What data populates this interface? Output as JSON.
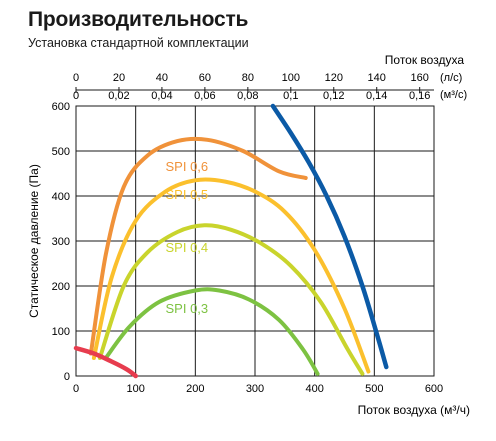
{
  "chart_data": {
    "type": "line",
    "title": "Производительность",
    "subtitle": "Установка стандартной комплектации",
    "xlabel": "Поток воздуха (м³/ч)",
    "ylabel": "Статическое давление (Па)",
    "top_axis_label": "Поток воздуха",
    "top_axis_unit_ls": "(л/с)",
    "top_axis_unit_m3s": "(м³/с)",
    "xlim": [
      0,
      600
    ],
    "ylim": [
      0,
      600
    ],
    "x_ticks": [
      "0",
      "100",
      "200",
      "300",
      "400",
      "500",
      "600"
    ],
    "y_ticks": [
      "0",
      "100",
      "200",
      "300",
      "400",
      "500",
      "600"
    ],
    "top_ticks_ls": [
      "0",
      "20",
      "40",
      "60",
      "80",
      "100",
      "120",
      "140",
      "160"
    ],
    "top_ticks_m3s": [
      "0",
      "0,02",
      "0,04",
      "0,06",
      "0,08",
      "0,1",
      "0,12",
      "0,14",
      "0,16"
    ],
    "grid": true,
    "series": [
      {
        "name": "SPI 0,6",
        "color": "#f0923a",
        "x": [
          25,
          50,
          80,
          120,
          170,
          220,
          280,
          340,
          385
        ],
        "y": [
          50,
          270,
          420,
          490,
          522,
          525,
          500,
          455,
          440
        ]
      },
      {
        "name": "SPI 0,5",
        "color": "#fbc02d",
        "x": [
          30,
          60,
          100,
          150,
          200,
          250,
          300,
          350,
          400,
          450,
          490
        ],
        "y": [
          40,
          220,
          345,
          410,
          435,
          432,
          410,
          365,
          280,
          150,
          10
        ]
      },
      {
        "name": "SPI 0,4",
        "color": "#c9d42c",
        "x": [
          40,
          80,
          120,
          170,
          215,
          260,
          310,
          360,
          410,
          455,
          480
        ],
        "y": [
          40,
          200,
          275,
          320,
          335,
          325,
          295,
          245,
          165,
          60,
          5
        ]
      },
      {
        "name": "SPI 0,3",
        "color": "#7dc242",
        "x": [
          50,
          90,
          140,
          200,
          240,
          290,
          340,
          380,
          405
        ],
        "y": [
          40,
          110,
          165,
          190,
          190,
          170,
          125,
          60,
          5
        ]
      },
      {
        "name": "",
        "color": "#e73c4e",
        "x": [
          0,
          30,
          60,
          85,
          100
        ],
        "y": [
          62,
          50,
          32,
          15,
          0
        ]
      },
      {
        "name": "",
        "color": "#0b5aa6",
        "x": [
          330,
          360,
          390,
          420,
          450,
          480,
          505,
          520
        ],
        "y": [
          600,
          540,
          475,
          400,
          310,
          200,
          90,
          20
        ]
      }
    ]
  }
}
